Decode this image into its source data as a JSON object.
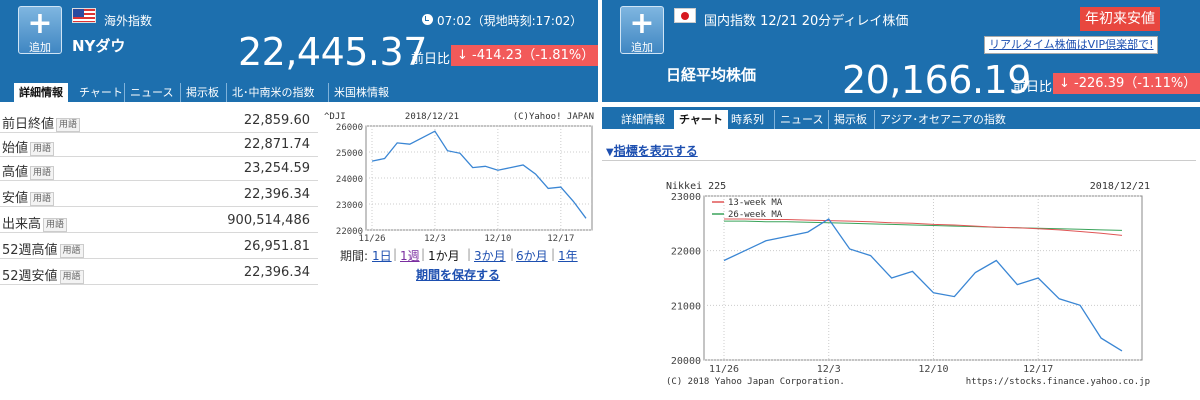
{
  "left": {
    "add_label": "追加",
    "category": "海外指数",
    "index_name": "NYダウ",
    "time": "07:02（現地時刻:17:02）",
    "price": "22,445.37",
    "prev_label": "前日比",
    "change": "-414.23（-1.81%）",
    "tabs": [
      "詳細情報",
      "チャート",
      "ニュース",
      "掲示板",
      "北･中南米の指数",
      "米国株情報"
    ],
    "details": [
      {
        "label": "前日終値",
        "term": "用語",
        "value": "22,859.60"
      },
      {
        "label": "始値",
        "term": "用語",
        "value": "22,871.74"
      },
      {
        "label": "高値",
        "term": "用語",
        "value": "23,254.59"
      },
      {
        "label": "安値",
        "term": "用語",
        "value": "22,396.34"
      },
      {
        "label": "出来高",
        "term": "用語",
        "value": "900,514,486"
      },
      {
        "label": "52週高値",
        "term": "用語",
        "value": "26,951.81"
      },
      {
        "label": "52週安値",
        "term": "用語",
        "value": "22,396.34"
      }
    ],
    "period_label": "期間:",
    "periods": [
      "1日",
      "1週",
      "1か月",
      "3か月",
      "6か月",
      "1年"
    ],
    "save_period": "期間を保存する"
  },
  "right": {
    "add_label": "追加",
    "category": "国内指数 12/21 20分ディレイ株価",
    "badge": "年初来安値",
    "vip_link": "リアルタイム株価はVIP倶楽部で!",
    "index_name": "日経平均株価",
    "price": "20,166.19",
    "prev_label": "前日比",
    "change": "-226.39（-1.11%）",
    "tabs": [
      "詳細情報",
      "チャート",
      "時系列",
      "ニュース",
      "掲示板",
      "アジア･オセアニアの指数"
    ],
    "show_indicators": "指標を表示する"
  },
  "colors": {
    "header_bg": "#1d6fae",
    "change_bg": "#f25a5a",
    "line": "#3a86d4",
    "ma13": "#e05555",
    "ma26": "#3aa35a"
  },
  "chart_data": [
    {
      "type": "line",
      "title": "^DJI",
      "date": "2018/12/21",
      "credit": "(C)Yahoo! JAPAN",
      "x_ticks": [
        "11/26",
        "12/3",
        "12/10",
        "12/17"
      ],
      "ylim": [
        22000,
        26000
      ],
      "y_ticks": [
        22000,
        23000,
        24000,
        25000,
        26000
      ],
      "series": [
        {
          "values": [
            24650,
            24750,
            25350,
            25300,
            25550,
            25800,
            25050,
            24950,
            24400,
            24450,
            24300,
            24400,
            24500,
            24150,
            23600,
            23650,
            23100,
            22450
          ]
        }
      ]
    },
    {
      "type": "line",
      "title": "Nikkei 225",
      "date": "2018/12/21",
      "credit": "(C) 2018 Yahoo Japan Corporation.",
      "url": "https://stocks.finance.yahoo.co.jp",
      "x_ticks": [
        "11/26",
        "12/3",
        "12/10",
        "12/17"
      ],
      "ylim": [
        20000,
        23000
      ],
      "y_ticks": [
        20000,
        21000,
        22000,
        23000
      ],
      "series": [
        {
          "name": "Nikkei 225",
          "values": [
            21820,
            22000,
            22180,
            22260,
            22340,
            22580,
            22030,
            21910,
            21500,
            21620,
            21230,
            21160,
            21600,
            21820,
            21380,
            21500,
            21120,
            21000,
            20400,
            20166
          ]
        },
        {
          "name": "13-week MA",
          "values": [
            22580,
            22580,
            22570,
            22570,
            22560,
            22550,
            22540,
            22530,
            22510,
            22500,
            22480,
            22470,
            22450,
            22430,
            22420,
            22400,
            22380,
            22350,
            22320,
            22280
          ]
        },
        {
          "name": "26-week MA",
          "values": [
            22540,
            22540,
            22530,
            22530,
            22520,
            22510,
            22500,
            22490,
            22480,
            22470,
            22460,
            22450,
            22440,
            22430,
            22420,
            22410,
            22400,
            22390,
            22380,
            22370
          ]
        }
      ]
    }
  ]
}
